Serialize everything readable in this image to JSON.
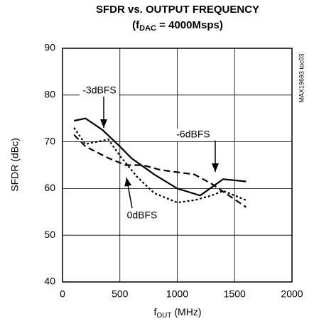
{
  "chart_data": {
    "type": "line",
    "title": "SFDR vs. OUTPUT FREQUENCY",
    "subtitle": [
      "(f",
      "DAC",
      " = 4000Msps)"
    ],
    "x_label": [
      "f",
      "OUT",
      " (MHz)"
    ],
    "y_label": "SFDR (dBc)",
    "annotation": "MAX19693 toc03",
    "xlim": [
      0,
      2000
    ],
    "xticks": [
      0,
      500,
      1000,
      1500,
      2000
    ],
    "ylim": [
      40,
      90
    ],
    "yticks": [
      40,
      50,
      60,
      70,
      80,
      90
    ],
    "grid": true,
    "series": [
      {
        "name": "-3dBFS",
        "color": "#000000",
        "line_style": "solid",
        "x": [
          100,
          200,
          350,
          500,
          600,
          800,
          1000,
          1200,
          1400,
          1600
        ],
        "values": [
          74.5,
          75,
          72.5,
          69,
          66.5,
          63,
          60,
          58.5,
          62,
          61.5
        ]
      },
      {
        "name": "-6dBFS",
        "color": "#000000",
        "line_style": "dashed",
        "x": [
          100,
          200,
          400,
          550,
          700,
          850,
          1000,
          1150,
          1300,
          1450,
          1600
        ],
        "values": [
          71.5,
          69,
          66.5,
          65,
          65,
          64,
          63.5,
          63,
          61,
          58.5,
          56
        ]
      },
      {
        "name": "0dBFS",
        "color": "#000000",
        "line_style": "dotted",
        "x": [
          100,
          200,
          400,
          500,
          650,
          800,
          1000,
          1150,
          1300,
          1400,
          1500,
          1600
        ],
        "values": [
          73,
          69.5,
          70.5,
          67,
          62.5,
          59,
          57,
          57.5,
          58.5,
          59.5,
          58.5,
          57.5
        ]
      }
    ]
  }
}
